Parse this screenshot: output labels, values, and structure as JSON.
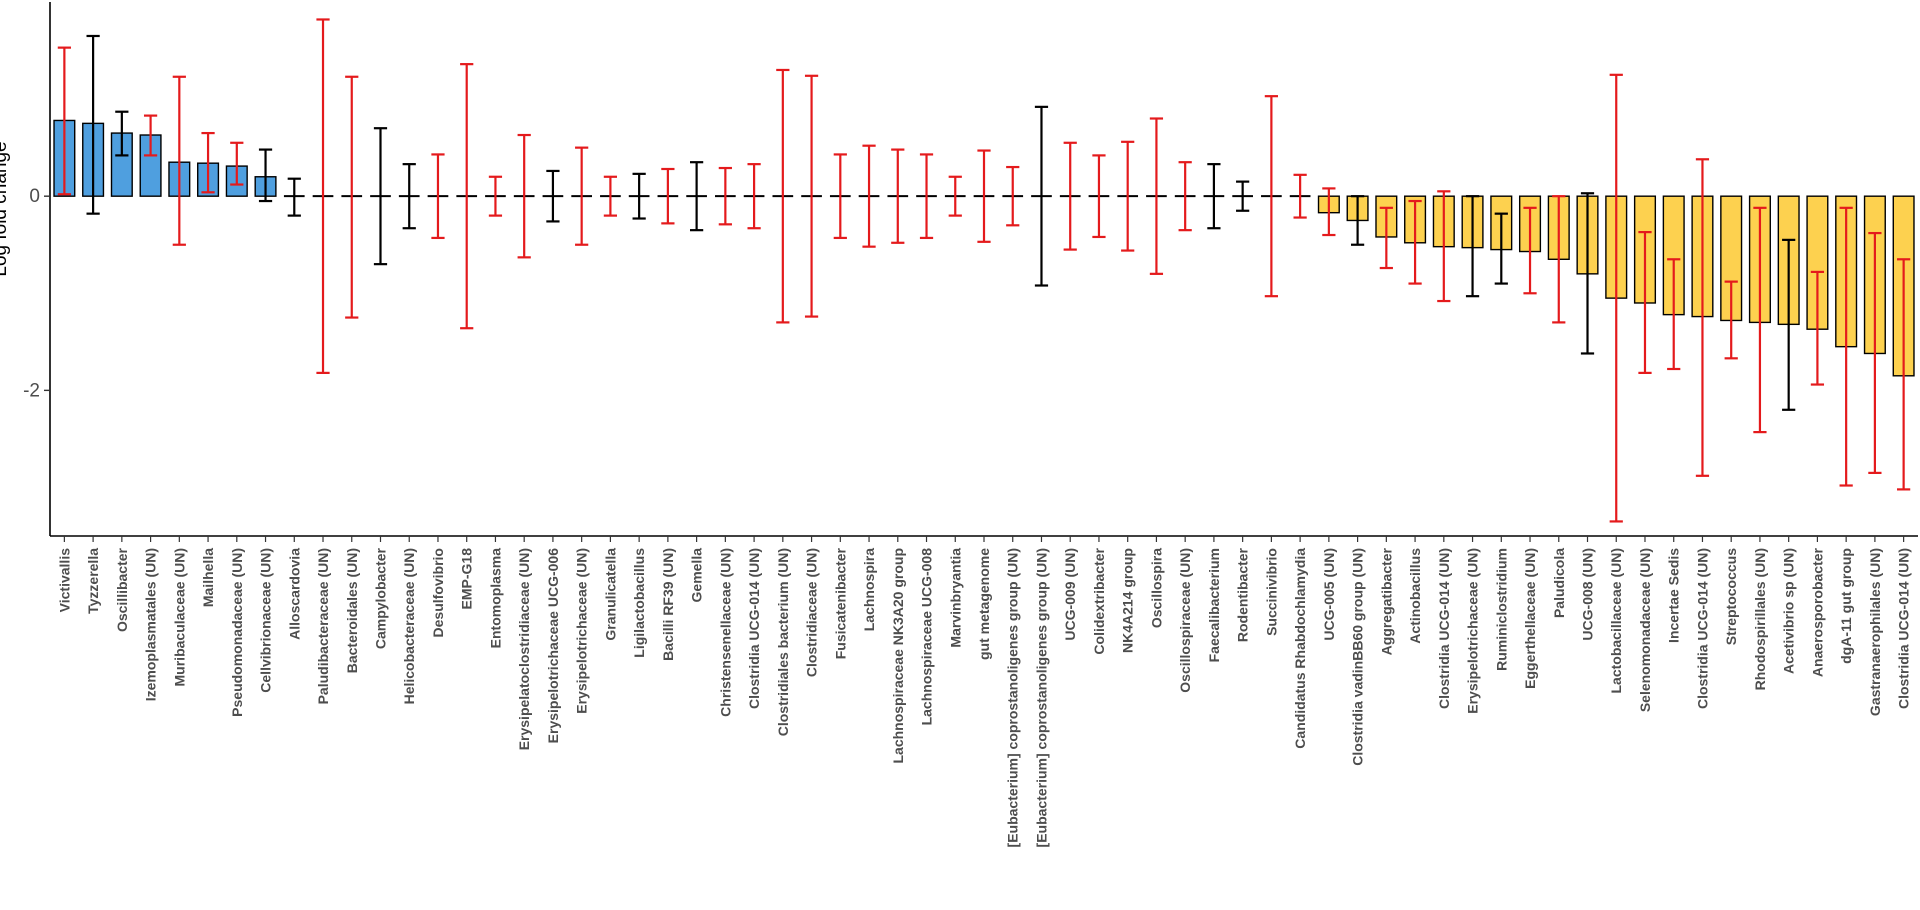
{
  "chart_data": {
    "type": "bar",
    "title": "",
    "xlabel": "",
    "ylabel": "Log fold change",
    "ylim": [
      -3.5,
      2.0
    ],
    "yticks": [
      -2,
      0
    ],
    "yticklabels": [
      "-2",
      "0"
    ],
    "grid": false,
    "legend": "none",
    "colors": {
      "positive_bar": "#4f9fdf",
      "negative_bar": "#fdd14f",
      "error_red": "#e41a1c",
      "error_black": "#000000",
      "bar_outline": "#000000"
    },
    "categories": [
      "Victivallis",
      "Tyzzerella",
      "Oscillibacter",
      "Izemoplasmatales (UN)",
      "Muribaculaceae (UN)",
      "Mailhella",
      "Pseudomonadaceae (UN)",
      "Cellvibrionaceae (UN)",
      "Alloscardovia",
      "Paludibacteraceae (UN)",
      "Bacteroidales (UN)",
      "Campylobacter",
      "Helicobacteraceae (UN)",
      "Desulfovibrio",
      "EMP-G18",
      "Entomoplasma",
      "Erysipelatoclostridiaceae (UN)",
      "Erysipelotrichaceae UCG-006",
      "Erysipelotrichaceae (UN)",
      "Granulicatella",
      "Ligilactobacillus",
      "Bacilli RF39 (UN)",
      "Gemella",
      "Christensenellaceae (UN)",
      "Clostridia UCG-014 (UN)",
      "Clostridiales bacterium (UN)",
      "Clostridiaceae (UN)",
      "Fusicatenibacter",
      "Lachnospira",
      "Lachnospiraceae NK3A20 group",
      "Lachnospiraceae UCG-008",
      "Marvinbryantia",
      "gut metagenome",
      "[Eubacterium] coprostanoligenes group (UN)",
      "[Eubacterium] coprostanoligenes group (UN)",
      "UCG-009 (UN)",
      "Colidextribacter",
      "NK4A214 group",
      "Oscillospira",
      "Oscillospiraceae (UN)",
      "Faecalibacterium",
      "Rodentibacter",
      "Succinivibrio",
      "Candidatus Rhabdochlamydia",
      "UCG-005 (UN)",
      "Clostridia vadinBB60 group (UN)",
      "Aggregatibacter",
      "Actinobacillus",
      "Clostridia UCG-014 (UN)",
      "Erysipelotrichaceae (UN)",
      "Ruminiclostridium",
      "Eggerthellaceae (UN)",
      "Paludicola",
      "UCG-008 (UN)",
      "Lactobacillaceae (UN)",
      "Selenomonadaceae (UN)",
      "Incertae Sedis",
      "Clostridia UCG-014 (UN)",
      "Streptococcus",
      "Rhodospirillales (UN)",
      "Acetivibrio sp (UN)",
      "Anaerosporobacter",
      "dgA-11 gut group",
      "Gastranaerophilales (UN)",
      "Clostridia UCG-014 (UN)"
    ],
    "values": [
      0.78,
      0.75,
      0.65,
      0.63,
      0.35,
      0.34,
      0.31,
      0.2,
      0,
      0,
      0,
      0,
      0,
      0,
      0,
      0,
      0,
      0,
      0,
      0,
      0,
      0,
      0,
      0,
      0,
      0,
      0,
      0,
      0,
      0,
      0,
      0,
      0,
      0,
      0,
      0,
      0,
      0,
      0,
      0,
      0,
      0,
      0,
      0,
      -0.17,
      -0.25,
      -0.42,
      -0.48,
      -0.52,
      -0.53,
      -0.55,
      -0.57,
      -0.65,
      -0.8,
      -1.05,
      -1.1,
      -1.22,
      -1.24,
      -1.28,
      -1.3,
      -1.32,
      -1.37,
      -1.55,
      -1.62,
      -1.85
    ],
    "error_low": [
      0.02,
      -0.18,
      0.42,
      0.42,
      -0.5,
      0.04,
      0.12,
      -0.05,
      -0.2,
      -1.82,
      -1.25,
      -0.7,
      -0.33,
      -0.43,
      -1.36,
      -0.2,
      -0.63,
      -0.26,
      -0.5,
      -0.2,
      -0.23,
      -0.28,
      -0.35,
      -0.29,
      -0.33,
      -1.3,
      -1.24,
      -0.43,
      -0.52,
      -0.48,
      -0.43,
      -0.2,
      -0.47,
      -0.3,
      -0.92,
      -0.55,
      -0.42,
      -0.56,
      -0.8,
      -0.35,
      -0.33,
      -0.15,
      -1.03,
      -0.22,
      -0.4,
      -0.5,
      -0.74,
      -0.9,
      -1.08,
      -1.03,
      -0.9,
      -1.0,
      -1.3,
      -1.62,
      -3.35,
      -1.82,
      -1.78,
      -2.88,
      -1.67,
      -2.43,
      -2.2,
      -1.94,
      -2.98,
      -2.85,
      -3.02
    ],
    "error_high": [
      1.53,
      1.65,
      0.87,
      0.83,
      1.23,
      0.65,
      0.55,
      0.48,
      0.18,
      1.82,
      1.23,
      0.7,
      0.33,
      0.43,
      1.36,
      0.2,
      0.63,
      0.26,
      0.5,
      0.2,
      0.23,
      0.28,
      0.35,
      0.29,
      0.33,
      1.3,
      1.24,
      0.43,
      0.52,
      0.48,
      0.43,
      0.2,
      0.47,
      0.3,
      0.92,
      0.55,
      0.42,
      0.56,
      0.8,
      0.35,
      0.33,
      0.15,
      1.03,
      0.22,
      0.08,
      0.0,
      -0.12,
      -0.05,
      0.05,
      0.0,
      -0.18,
      -0.12,
      0.0,
      0.03,
      1.25,
      -0.37,
      -0.65,
      0.38,
      -0.88,
      -0.12,
      -0.45,
      -0.78,
      -0.12,
      -0.38,
      -0.65
    ],
    "error_color": [
      "red",
      "black",
      "black",
      "red",
      "red",
      "red",
      "red",
      "black",
      "black",
      "red",
      "red",
      "black",
      "black",
      "red",
      "red",
      "red",
      "red",
      "black",
      "red",
      "red",
      "black",
      "red",
      "black",
      "red",
      "red",
      "red",
      "red",
      "red",
      "red",
      "red",
      "red",
      "red",
      "red",
      "red",
      "black",
      "red",
      "red",
      "red",
      "red",
      "red",
      "black",
      "black",
      "red",
      "red",
      "red",
      "black",
      "red",
      "red",
      "red",
      "black",
      "black",
      "red",
      "red",
      "black",
      "red",
      "red",
      "red",
      "red",
      "red",
      "red",
      "black",
      "red",
      "red",
      "red",
      "red"
    ]
  }
}
